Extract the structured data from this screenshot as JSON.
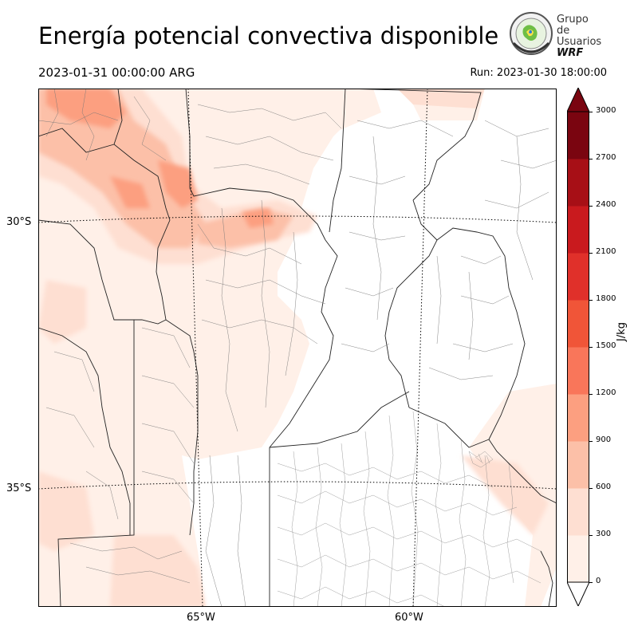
{
  "title": "Energía potencial convectiva disponible",
  "valid_time": "2023-01-31 00:00:00 ARG",
  "run_time": "Run: 2023-01-30 18:00:00",
  "logo": {
    "line1": "Grupo de",
    "line2": "Usuarios",
    "line3": "WRF"
  },
  "map": {
    "lat_labels": [
      "30°S",
      "35°S"
    ],
    "lon_labels": [
      "65°W",
      "60°W"
    ]
  },
  "colorbar": {
    "unit": "J/kg",
    "ticks": [
      "3000",
      "2700",
      "2400",
      "2100",
      "1800",
      "1500",
      "1200",
      "900",
      "600",
      "300",
      "0"
    ],
    "colors": [
      "#fff0e8",
      "#fedfd2",
      "#fcc0a8",
      "#fc9f80",
      "#f9765a",
      "#f05538",
      "#e0302a",
      "#c91a1e",
      "#a70f16",
      "#7a0510"
    ]
  }
}
